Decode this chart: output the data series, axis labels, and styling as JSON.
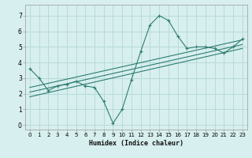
{
  "title": "",
  "xlabel": "Humidex (Indice chaleur)",
  "background_color": "#d7efee",
  "grid_color": "#b8dbd9",
  "line_color": "#2e7d72",
  "xlim": [
    -0.5,
    23.5
  ],
  "ylim": [
    -0.3,
    7.7
  ],
  "xticks": [
    0,
    1,
    2,
    3,
    4,
    5,
    6,
    7,
    8,
    9,
    10,
    11,
    12,
    13,
    14,
    15,
    16,
    17,
    18,
    19,
    20,
    21,
    22,
    23
  ],
  "yticks": [
    0,
    1,
    2,
    3,
    4,
    5,
    6,
    7
  ],
  "series1_x": [
    0,
    1,
    2,
    3,
    4,
    5,
    6,
    7,
    8,
    9,
    10,
    11,
    12,
    13,
    14,
    15,
    16,
    17,
    18,
    19,
    20,
    21,
    22,
    23
  ],
  "series1_y": [
    3.6,
    3.0,
    2.2,
    2.5,
    2.6,
    2.8,
    2.5,
    2.4,
    1.5,
    0.1,
    1.0,
    2.9,
    4.7,
    6.4,
    7.0,
    6.7,
    5.7,
    4.9,
    5.0,
    5.0,
    4.9,
    4.6,
    5.0,
    5.5
  ],
  "trend1_x": [
    0,
    23
  ],
  "trend1_y": [
    1.8,
    4.9
  ],
  "trend2_x": [
    0,
    23
  ],
  "trend2_y": [
    2.1,
    5.15
  ],
  "trend3_x": [
    0,
    23
  ],
  "trend3_y": [
    2.4,
    5.45
  ]
}
